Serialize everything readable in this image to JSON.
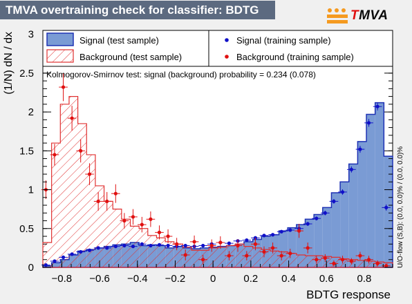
{
  "chart_data": {
    "type": "histogram",
    "title": "TMVA overtraining check for classifier: BDTG",
    "logo": {
      "prefix": "T",
      "suffix": "MVA"
    },
    "xlabel": "BDTG response",
    "ylabel": "(1/N) dN / dx",
    "xlim": [
      -0.9,
      0.95
    ],
    "ylim": [
      0,
      3.05
    ],
    "x_ticks": [
      -0.8,
      -0.6,
      -0.4,
      -0.2,
      0,
      0.2,
      0.4,
      0.6,
      0.8
    ],
    "x_tick_labels": [
      "−0.8",
      "−0.6",
      "−0.4",
      "−0.2",
      "0",
      "0.2",
      "0.4",
      "0.6",
      "0.8"
    ],
    "y_ticks": [
      0,
      0.5,
      1,
      1.5,
      2,
      2.5,
      3
    ],
    "y_tick_labels": [
      "0",
      "0.5",
      "1",
      "1.5",
      "2",
      "2.5",
      "3"
    ],
    "grid": false,
    "legend_position": "top",
    "bin_edges_range": [
      -0.9,
      0.95
    ],
    "n_bins": 40,
    "series": [
      {
        "name": "Signal (test sample)",
        "kind": "filled-histogram",
        "color": "#7a9bd4",
        "edge_color": "#1e32b4",
        "values": [
          0.02,
          0.06,
          0.1,
          0.16,
          0.21,
          0.23,
          0.25,
          0.27,
          0.29,
          0.3,
          0.32,
          0.28,
          0.29,
          0.28,
          0.25,
          0.27,
          0.25,
          0.24,
          0.25,
          0.26,
          0.27,
          0.28,
          0.3,
          0.33,
          0.36,
          0.4,
          0.42,
          0.47,
          0.51,
          0.55,
          0.62,
          0.68,
          0.77,
          0.96,
          1.1,
          1.33,
          1.62,
          1.97,
          2.12,
          1.43
        ]
      },
      {
        "name": "Background (test sample)",
        "kind": "hatched-histogram",
        "color": "#e03030",
        "values": [
          0.32,
          1.6,
          2.1,
          2.2,
          1.85,
          1.45,
          1.05,
          0.85,
          0.75,
          0.62,
          0.53,
          0.5,
          0.41,
          0.38,
          0.33,
          0.3,
          0.26,
          0.22,
          0.22,
          0.25,
          0.26,
          0.28,
          0.3,
          0.27,
          0.25,
          0.23,
          0.21,
          0.2,
          0.18,
          0.16,
          0.15,
          0.15,
          0.14,
          0.13,
          0.11,
          0.1,
          0.09,
          0.08,
          0.07,
          0.06
        ]
      },
      {
        "name": "Signal (training sample)",
        "kind": "points",
        "color": "#1010c8",
        "x": [
          -0.884,
          -0.838,
          -0.792,
          -0.746,
          -0.7,
          -0.653,
          -0.607,
          -0.561,
          -0.515,
          -0.469,
          -0.423,
          -0.376,
          -0.33,
          -0.284,
          -0.238,
          -0.192,
          -0.146,
          -0.099,
          -0.053,
          -0.007,
          0.039,
          0.085,
          0.131,
          0.178,
          0.224,
          0.27,
          0.316,
          0.362,
          0.408,
          0.455,
          0.501,
          0.547,
          0.593,
          0.639,
          0.685,
          0.732,
          0.778,
          0.824,
          0.87,
          0.916
        ],
        "y": [
          0.03,
          0.08,
          0.13,
          0.17,
          0.2,
          0.22,
          0.25,
          0.25,
          0.27,
          0.28,
          0.27,
          0.3,
          0.28,
          0.29,
          0.28,
          0.27,
          0.28,
          0.27,
          0.28,
          0.3,
          0.32,
          0.31,
          0.34,
          0.35,
          0.38,
          0.41,
          0.42,
          0.46,
          0.48,
          0.5,
          0.56,
          0.63,
          0.7,
          0.85,
          0.97,
          1.26,
          1.52,
          1.86,
          2.07,
          0.77
        ],
        "yerr": [
          0.01,
          0.015,
          0.02,
          0.02,
          0.02,
          0.02,
          0.02,
          0.02,
          0.02,
          0.02,
          0.02,
          0.02,
          0.02,
          0.02,
          0.02,
          0.02,
          0.02,
          0.02,
          0.02,
          0.02,
          0.02,
          0.02,
          0.02,
          0.02,
          0.02,
          0.02,
          0.02,
          0.02,
          0.02,
          0.025,
          0.025,
          0.025,
          0.03,
          0.03,
          0.035,
          0.04,
          0.045,
          0.05,
          0.05,
          0.04
        ]
      },
      {
        "name": "Background (training sample)",
        "kind": "points",
        "color": "#e01010",
        "x": [
          -0.884,
          -0.838,
          -0.792,
          -0.746,
          -0.7,
          -0.653,
          -0.607,
          -0.561,
          -0.515,
          -0.469,
          -0.423,
          -0.376,
          -0.33,
          -0.284,
          -0.238,
          -0.192,
          -0.146,
          -0.099,
          -0.053,
          -0.007,
          0.039,
          0.085,
          0.131,
          0.178,
          0.224,
          0.27,
          0.316,
          0.362,
          0.408,
          0.455,
          0.501,
          0.547,
          0.593,
          0.639,
          0.685,
          0.732,
          0.778,
          0.824,
          0.87,
          0.916
        ],
        "y": [
          1.0,
          1.45,
          2.32,
          1.92,
          1.5,
          1.2,
          0.85,
          0.85,
          0.95,
          0.6,
          0.65,
          0.55,
          0.62,
          0.45,
          0.4,
          0.3,
          0.16,
          0.33,
          0.1,
          0.28,
          0.32,
          0.15,
          0.28,
          0.15,
          0.3,
          0.2,
          0.25,
          0.15,
          0.18,
          0.47,
          0.25,
          0.1,
          0.12,
          0.05,
          0.1,
          0.08,
          0.15,
          0.1,
          0.05,
          0.02
        ],
        "yerr": [
          0.12,
          0.14,
          0.18,
          0.16,
          0.15,
          0.14,
          0.12,
          0.12,
          0.12,
          0.1,
          0.1,
          0.1,
          0.1,
          0.09,
          0.09,
          0.08,
          0.07,
          0.08,
          0.06,
          0.08,
          0.08,
          0.06,
          0.08,
          0.06,
          0.08,
          0.07,
          0.07,
          0.06,
          0.06,
          0.09,
          0.07,
          0.05,
          0.05,
          0.04,
          0.05,
          0.04,
          0.05,
          0.05,
          0.04,
          0.03
        ]
      }
    ],
    "annotations": {
      "ks_text": "Kolmogorov-Smirnov test: signal (background) probability = 0.234 (0.078)",
      "overflow_text": "U/O-flow (S,B): (0.0, 0.0)% / (0.0, 0.0)%"
    }
  }
}
